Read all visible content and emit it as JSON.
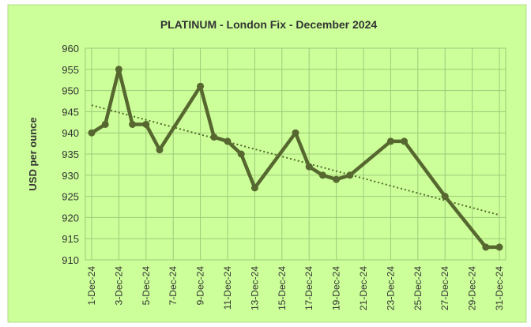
{
  "chart_data": {
    "type": "line",
    "title": "PLATINUM  - London Fix - December 2024",
    "y_label": "USD per ounce",
    "x": [
      "2024-12-01",
      "2024-12-02",
      "2024-12-03",
      "2024-12-04",
      "2024-12-05",
      "2024-12-06",
      "2024-12-09",
      "2024-12-10",
      "2024-12-11",
      "2024-12-12",
      "2024-12-13",
      "2024-12-16",
      "2024-12-17",
      "2024-12-18",
      "2024-12-19",
      "2024-12-20",
      "2024-12-23",
      "2024-12-24",
      "2024-12-27",
      "2024-12-30",
      "2024-12-31"
    ],
    "series": [
      {
        "color": "#56682f",
        "values": [
          940,
          942,
          955,
          942,
          942,
          936,
          951,
          939,
          938,
          935,
          927,
          940,
          932,
          930,
          929,
          930,
          938,
          938,
          925,
          913,
          913
        ]
      }
    ],
    "trendline": {
      "type": "linear",
      "color": "#56682f"
    },
    "xlim": [
      "2024-12-01",
      "2024-12-31"
    ],
    "xticks": [
      {
        "value": "2024-12-01",
        "label": "1-Dec-24"
      },
      {
        "value": "2024-12-03",
        "label": "3-Dec-24"
      },
      {
        "value": "2024-12-05",
        "label": "5-Dec-24"
      },
      {
        "value": "2024-12-07",
        "label": "7-Dec-24"
      },
      {
        "value": "2024-12-09",
        "label": "9-Dec-24"
      },
      {
        "value": "2024-12-11",
        "label": "11-Dec-24"
      },
      {
        "value": "2024-12-13",
        "label": "13-Dec-24"
      },
      {
        "value": "2024-12-15",
        "label": "15-Dec-24"
      },
      {
        "value": "2024-12-17",
        "label": "17-Dec-24"
      },
      {
        "value": "2024-12-19",
        "label": "19-Dec-24"
      },
      {
        "value": "2024-12-21",
        "label": "21-Dec-24"
      },
      {
        "value": "2024-12-23",
        "label": "23-Dec-24"
      },
      {
        "value": "2024-12-25",
        "label": "25-Dec-24"
      },
      {
        "value": "2024-12-27",
        "label": "27-Dec-24"
      },
      {
        "value": "2024-12-29",
        "label": "29-Dec-24"
      },
      {
        "value": "2024-12-31",
        "label": "31-Dec-24"
      }
    ],
    "ylim": [
      910,
      960
    ],
    "yticks": [
      910,
      915,
      920,
      925,
      930,
      935,
      940,
      945,
      950,
      955,
      960
    ],
    "grid": true
  }
}
